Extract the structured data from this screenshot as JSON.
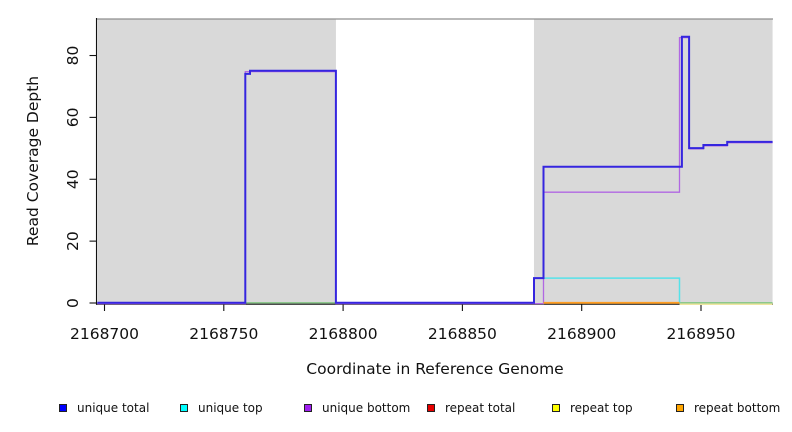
{
  "chart_data": {
    "type": "line",
    "title": "",
    "xlabel": "Coordinate in Reference Genome",
    "ylabel": "Read Coverage Depth",
    "x_ticks": [
      2168700,
      2168750,
      2168800,
      2168850,
      2168900,
      2168950
    ],
    "y_ticks": [
      0,
      20,
      40,
      60,
      80
    ],
    "xlim": [
      2168697,
      2168980
    ],
    "ylim": [
      0,
      92
    ],
    "grid": false,
    "legend_position": "bottom",
    "plot_background": "#ffffff",
    "shaded_regions": [
      {
        "x0": 2168697,
        "x1": 2168797,
        "color": "#d9d9d9"
      },
      {
        "x0": 2168880,
        "x1": 2168980,
        "color": "#d9d9d9"
      }
    ],
    "series": [
      {
        "name": "unique total",
        "color": "#3526df",
        "width": 2,
        "z": 10,
        "points": [
          [
            2168697,
            0
          ],
          [
            2168759,
            0
          ],
          [
            2168759,
            74
          ],
          [
            2168761,
            74
          ],
          [
            2168761,
            75
          ],
          [
            2168797,
            75
          ],
          [
            2168797,
            0
          ],
          [
            2168880,
            0
          ],
          [
            2168880,
            8
          ],
          [
            2168884,
            8
          ],
          [
            2168884,
            44
          ],
          [
            2168942,
            44
          ],
          [
            2168942,
            86
          ],
          [
            2168945,
            86
          ],
          [
            2168945,
            50
          ],
          [
            2168951,
            50
          ],
          [
            2168951,
            51
          ],
          [
            2168961,
            51
          ],
          [
            2168961,
            52
          ],
          [
            2168980,
            52
          ]
        ]
      },
      {
        "name": "unique top",
        "color": "#55e2e9",
        "width": 1.5,
        "z": 2,
        "points": [
          [
            2168880,
            0
          ],
          [
            2168880,
            8
          ],
          [
            2168941,
            8
          ],
          [
            2168941,
            0
          ]
        ]
      },
      {
        "name": "unique bottom",
        "color": "#b168e2",
        "width": 1.3,
        "z": 3,
        "points": [
          [
            2168697,
            0
          ],
          [
            2168759,
            0
          ],
          [
            2168759,
            75
          ],
          [
            2168797,
            75
          ],
          [
            2168797,
            0
          ],
          [
            2168884,
            0
          ],
          [
            2168884,
            36
          ],
          [
            2168941,
            36
          ],
          [
            2168941,
            86
          ],
          [
            2168945,
            86
          ],
          [
            2168945,
            50
          ],
          [
            2168951,
            50
          ],
          [
            2168951,
            51
          ],
          [
            2168961,
            51
          ],
          [
            2168961,
            52
          ],
          [
            2168980,
            52
          ]
        ]
      },
      {
        "name": "repeat bottom",
        "color": "#ff9d20",
        "width": 1.8,
        "z": 4,
        "points": [
          [
            2168884,
            0
          ],
          [
            2168941,
            0
          ]
        ]
      }
    ],
    "zero_line_segments": [
      {
        "x0": 2168759,
        "x1": 2168797,
        "color": "#8cc88c",
        "dy": 0
      },
      {
        "x0": 2168941,
        "x1": 2168980,
        "color": "#efe6a0",
        "dy": 1.5
      },
      {
        "x0": 2168941,
        "x1": 2168980,
        "color": "#8cc88c",
        "dy": 0
      }
    ]
  },
  "legend": {
    "items": [
      {
        "label": "unique total",
        "color": "#0000ff"
      },
      {
        "label": "unique top",
        "color": "#00ffff"
      },
      {
        "label": "unique bottom",
        "color": "#a020f0"
      },
      {
        "label": "repeat total",
        "color": "#e60000"
      },
      {
        "label": "repeat top",
        "color": "#ffff00"
      },
      {
        "label": "repeat bottom",
        "color": "#ffa500"
      }
    ]
  }
}
